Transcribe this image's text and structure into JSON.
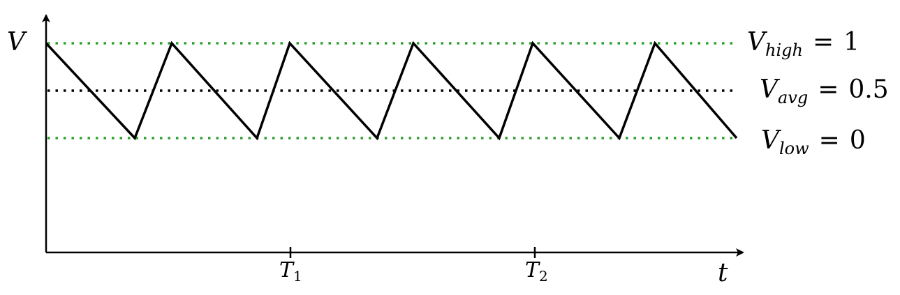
{
  "axes": {
    "y_label": "V",
    "x_label": "t",
    "x_ticks": [
      {
        "symbol": "T",
        "subscript": "1"
      },
      {
        "symbol": "T",
        "subscript": "2"
      }
    ]
  },
  "levels": {
    "high": {
      "symbol": "V",
      "subscript": "high",
      "relation": "=",
      "value": "1",
      "color": "#2ca02c"
    },
    "avg": {
      "symbol": "V",
      "subscript": "avg",
      "relation": "=",
      "value": "0.5",
      "color": "#000000"
    },
    "low": {
      "symbol": "V",
      "subscript": "low",
      "relation": "=",
      "value": "0",
      "color": "#2ca02c"
    }
  },
  "waveform": {
    "type": "sawtooth",
    "color": "#000000"
  }
}
